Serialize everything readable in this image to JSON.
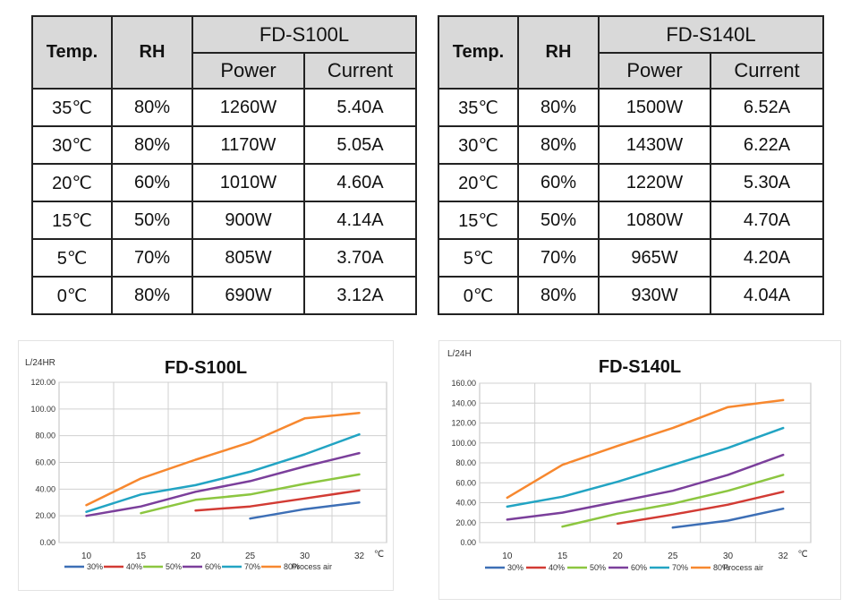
{
  "tables": [
    {
      "model": "FD-S100L",
      "headers": {
        "temp": "Temp.",
        "rh": "RH",
        "power": "Power",
        "current": "Current"
      },
      "rows": [
        {
          "temp": "35℃",
          "rh": "80%",
          "power": "1260W",
          "current": "5.40A"
        },
        {
          "temp": "30℃",
          "rh": "80%",
          "power": "1170W",
          "current": "5.05A"
        },
        {
          "temp": "20℃",
          "rh": "60%",
          "power": "1010W",
          "current": "4.60A"
        },
        {
          "temp": "15℃",
          "rh": "50%",
          "power": "900W",
          "current": "4.14A"
        },
        {
          "temp": "5℃",
          "rh": "70%",
          "power": "805W",
          "current": "3.70A"
        },
        {
          "temp": "0℃",
          "rh": "80%",
          "power": "690W",
          "current": "3.12A"
        }
      ]
    },
    {
      "model": "FD-S140L",
      "headers": {
        "temp": "Temp.",
        "rh": "RH",
        "power": "Power",
        "current": "Current"
      },
      "rows": [
        {
          "temp": "35℃",
          "rh": "80%",
          "power": "1500W",
          "current": "6.52A"
        },
        {
          "temp": "30℃",
          "rh": "80%",
          "power": "1430W",
          "current": "6.22A"
        },
        {
          "temp": "20℃",
          "rh": "60%",
          "power": "1220W",
          "current": "5.30A"
        },
        {
          "temp": "15℃",
          "rh": "50%",
          "power": "1080W",
          "current": "4.70A"
        },
        {
          "temp": "5℃",
          "rh": "70%",
          "power": "965W",
          "current": "4.20A"
        },
        {
          "temp": "0℃",
          "rh": "80%",
          "power": "930W",
          "current": "4.04A"
        }
      ]
    }
  ],
  "chart_data": [
    {
      "type": "line",
      "title": "FD-S100L",
      "ylabel": "L/24HR",
      "xlabel": "Process air",
      "x_unit": "℃",
      "x_categories": [
        10,
        15,
        20,
        25,
        30,
        32
      ],
      "yticks": [
        "0.00",
        "20.00",
        "40.00",
        "60.00",
        "80.00",
        "100.00",
        "120.00"
      ],
      "ylim": [
        0,
        120
      ],
      "grid": true,
      "legend_position": "bottom",
      "series": [
        {
          "name": "30%",
          "color": "#3d6fb6",
          "points": [
            [
              25,
              18
            ],
            [
              30,
              25
            ],
            [
              32,
              30
            ]
          ]
        },
        {
          "name": "40%",
          "color": "#d23b34",
          "points": [
            [
              20,
              24
            ],
            [
              25,
              27
            ],
            [
              30,
              33
            ],
            [
              32,
              39
            ]
          ]
        },
        {
          "name": "50%",
          "color": "#8cc640",
          "points": [
            [
              15,
              22
            ],
            [
              20,
              32
            ],
            [
              25,
              36
            ],
            [
              30,
              44
            ],
            [
              32,
              51
            ]
          ]
        },
        {
          "name": "60%",
          "color": "#7b3f9b",
          "points": [
            [
              10,
              20
            ],
            [
              15,
              27
            ],
            [
              20,
              38
            ],
            [
              25,
              46
            ],
            [
              30,
              57
            ],
            [
              32,
              67
            ]
          ]
        },
        {
          "name": "70%",
          "color": "#22a4c3",
          "points": [
            [
              10,
              23
            ],
            [
              15,
              36
            ],
            [
              20,
              43
            ],
            [
              25,
              53
            ],
            [
              30,
              66
            ],
            [
              32,
              81
            ]
          ]
        },
        {
          "name": "80%",
          "color": "#f7882f",
          "points": [
            [
              10,
              28
            ],
            [
              15,
              48
            ],
            [
              20,
              62
            ],
            [
              25,
              75
            ],
            [
              30,
              93
            ],
            [
              32,
              97
            ]
          ]
        }
      ]
    },
    {
      "type": "line",
      "title": "FD-S140L",
      "ylabel": "L/24H",
      "xlabel": "Process air",
      "x_unit": "℃",
      "x_categories": [
        10,
        15,
        20,
        25,
        30,
        32
      ],
      "yticks": [
        "0.00",
        "20.00",
        "40.00",
        "60.00",
        "80.00",
        "100.00",
        "120.00",
        "140.00",
        "160.00"
      ],
      "ylim": [
        0,
        160
      ],
      "grid": true,
      "legend_position": "bottom",
      "series": [
        {
          "name": "30%",
          "color": "#3d6fb6",
          "points": [
            [
              25,
              15
            ],
            [
              30,
              22
            ],
            [
              32,
              34
            ]
          ]
        },
        {
          "name": "40%",
          "color": "#d23b34",
          "points": [
            [
              20,
              19
            ],
            [
              25,
              28
            ],
            [
              30,
              38
            ],
            [
              32,
              51
            ]
          ]
        },
        {
          "name": "50%",
          "color": "#8cc640",
          "points": [
            [
              15,
              16
            ],
            [
              20,
              29
            ],
            [
              25,
              39
            ],
            [
              30,
              52
            ],
            [
              32,
              68
            ]
          ]
        },
        {
          "name": "60%",
          "color": "#7b3f9b",
          "points": [
            [
              10,
              23
            ],
            [
              15,
              30
            ],
            [
              20,
              41
            ],
            [
              25,
              52
            ],
            [
              30,
              68
            ],
            [
              32,
              88
            ]
          ]
        },
        {
          "name": "70%",
          "color": "#22a4c3",
          "points": [
            [
              10,
              36
            ],
            [
              15,
              46
            ],
            [
              20,
              61
            ],
            [
              25,
              78
            ],
            [
              30,
              95
            ],
            [
              32,
              115
            ]
          ]
        },
        {
          "name": "80%",
          "color": "#f7882f",
          "points": [
            [
              10,
              45
            ],
            [
              15,
              78
            ],
            [
              20,
              97
            ],
            [
              25,
              115
            ],
            [
              30,
              136
            ],
            [
              32,
              143
            ]
          ]
        }
      ]
    }
  ]
}
